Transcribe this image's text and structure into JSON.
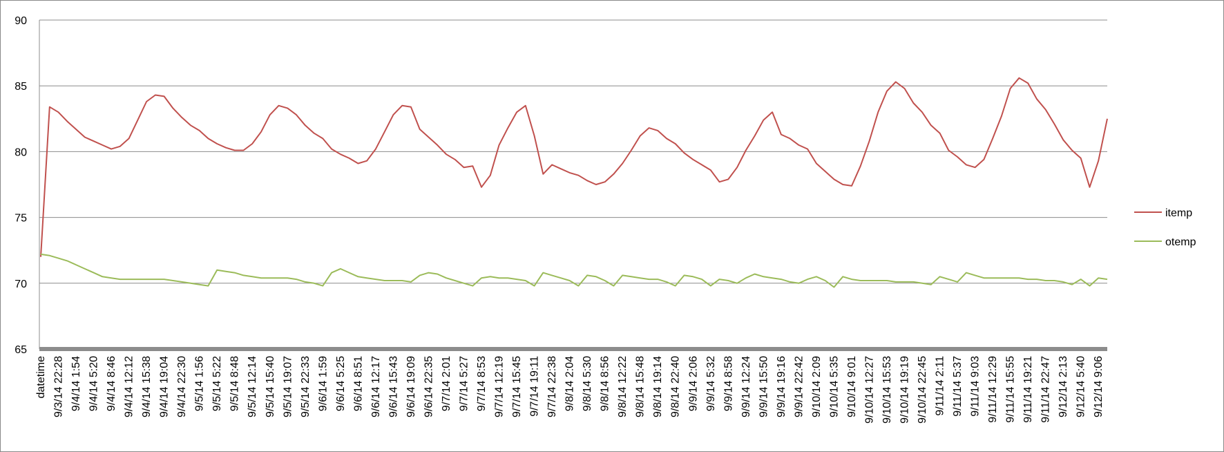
{
  "chart_data": {
    "type": "line",
    "categories": [
      "datetime",
      null,
      "9/3/14 22:28",
      null,
      "9/4/14 1:54",
      null,
      "9/4/14 5:20",
      null,
      "9/4/14 8:46",
      null,
      "9/4/14 12:12",
      null,
      "9/4/14 15:38",
      null,
      "9/4/14 19:04",
      null,
      "9/4/14 22:30",
      null,
      "9/5/14 1:56",
      null,
      "9/5/14 5:22",
      null,
      "9/5/14 8:48",
      null,
      "9/5/14 12:14",
      null,
      "9/5/14 15:40",
      null,
      "9/5/14 19:07",
      null,
      "9/5/14 22:33",
      null,
      "9/6/14 1:59",
      null,
      "9/6/14 5:25",
      null,
      "9/6/14 8:51",
      null,
      "9/6/14 12:17",
      null,
      "9/6/14 15:43",
      null,
      "9/6/14 19:09",
      null,
      "9/6/14 22:35",
      null,
      "9/7/14 2:01",
      null,
      "9/7/14 5:27",
      null,
      "9/7/14 8:53",
      null,
      "9/7/14 12:19",
      null,
      "9/7/14 15:45",
      null,
      "9/7/14 19:11",
      null,
      "9/7/14 22:38",
      null,
      "9/8/14 2:04",
      null,
      "9/8/14 5:30",
      null,
      "9/8/14 8:56",
      null,
      "9/8/14 12:22",
      null,
      "9/8/14 15:48",
      null,
      "9/8/14 19:14",
      null,
      "9/8/14 22:40",
      null,
      "9/9/14 2:06",
      null,
      "9/9/14 5:32",
      null,
      "9/9/14 8:58",
      null,
      "9/9/14 12:24",
      null,
      "9/9/14 15:50",
      null,
      "9/9/14 19:16",
      null,
      "9/9/14 22:42",
      null,
      "9/10/14 2:09",
      null,
      "9/10/14 5:35",
      null,
      "9/10/14 9:01",
      null,
      "9/10/14 12:27",
      null,
      "9/10/14 15:53",
      null,
      "9/10/14 19:19",
      null,
      "9/10/14 22:45",
      null,
      "9/11/14 2:11",
      null,
      "9/11/14 5:37",
      null,
      "9/11/14 9:03",
      null,
      "9/11/14 12:29",
      null,
      "9/11/14 15:55",
      null,
      "9/11/14 19:21",
      null,
      "9/11/14 22:47",
      null,
      "9/12/14 2:13",
      null,
      "9/12/14 5:40",
      null,
      "9/12/14 9:06",
      null
    ],
    "series": [
      {
        "name": "itemp",
        "color": "#c0504d",
        "values": [
          72,
          83.4,
          83,
          82.3,
          81.7,
          81.1,
          80.8,
          80.5,
          80.2,
          80.4,
          81,
          82.4,
          83.8,
          84.3,
          84.2,
          83.3,
          82.6,
          82,
          81.6,
          81,
          80.6,
          80.3,
          80.1,
          80.1,
          80.6,
          81.5,
          82.8,
          83.5,
          83.3,
          82.8,
          82,
          81.4,
          81,
          80.2,
          79.8,
          79.5,
          79.1,
          79.3,
          80.2,
          81.5,
          82.8,
          83.5,
          83.4,
          81.7,
          81.1,
          80.5,
          79.8,
          79.4,
          78.8,
          78.9,
          77.3,
          78.2,
          80.5,
          81.8,
          83,
          83.5,
          81.2,
          78.3,
          79,
          78.7,
          78.4,
          78.2,
          77.8,
          77.5,
          77.7,
          78.3,
          79.1,
          80.1,
          81.2,
          81.8,
          81.6,
          81,
          80.6,
          79.9,
          79.4,
          79,
          78.6,
          77.7,
          77.9,
          78.8,
          80.1,
          81.2,
          82.4,
          83,
          81.3,
          81,
          80.5,
          80.2,
          79.1,
          78.5,
          77.9,
          77.5,
          77.4,
          78.9,
          80.8,
          83,
          84.6,
          85.3,
          84.8,
          83.7,
          83,
          82,
          81.4,
          80.1,
          79.6,
          79,
          78.8,
          79.4,
          81,
          82.7,
          84.8,
          85.6,
          85.2,
          84,
          83.2,
          82.1,
          80.9,
          80.1,
          79.5,
          77.3,
          79.3,
          82.5
        ]
      },
      {
        "name": "otemp",
        "color": "#9bbb59",
        "values": [
          72.2,
          72.1,
          71.9,
          71.7,
          71.4,
          71.1,
          70.8,
          70.5,
          70.4,
          70.3,
          70.3,
          70.3,
          70.3,
          70.3,
          70.3,
          70.2,
          70.1,
          70,
          69.9,
          69.8,
          71,
          70.9,
          70.8,
          70.6,
          70.5,
          70.4,
          70.4,
          70.4,
          70.4,
          70.3,
          70.1,
          70,
          69.8,
          70.8,
          71.1,
          70.8,
          70.5,
          70.4,
          70.3,
          70.2,
          70.2,
          70.2,
          70.1,
          70.6,
          70.8,
          70.7,
          70.4,
          70.2,
          70,
          69.8,
          70.4,
          70.5,
          70.4,
          70.4,
          70.3,
          70.2,
          69.8,
          70.8,
          70.6,
          70.4,
          70.2,
          69.8,
          70.6,
          70.5,
          70.2,
          69.8,
          70.6,
          70.5,
          70.4,
          70.3,
          70.3,
          70.1,
          69.8,
          70.6,
          70.5,
          70.3,
          69.8,
          70.3,
          70.2,
          70,
          70.4,
          70.7,
          70.5,
          70.4,
          70.3,
          70.1,
          70,
          70.3,
          70.5,
          70.2,
          69.7,
          70.5,
          70.3,
          70.2,
          70.2,
          70.2,
          70.2,
          70.1,
          70.1,
          70.1,
          70,
          69.9,
          70.5,
          70.3,
          70.1,
          70.8,
          70.6,
          70.4,
          70.4,
          70.4,
          70.4,
          70.4,
          70.3,
          70.3,
          70.2,
          70.2,
          70.1,
          69.9,
          70.3,
          69.8,
          70.4,
          70.3
        ]
      }
    ],
    "ylim": [
      65,
      90
    ],
    "yticks": [
      65,
      70,
      75,
      80,
      85,
      90
    ],
    "grid": true,
    "legend": "right"
  }
}
